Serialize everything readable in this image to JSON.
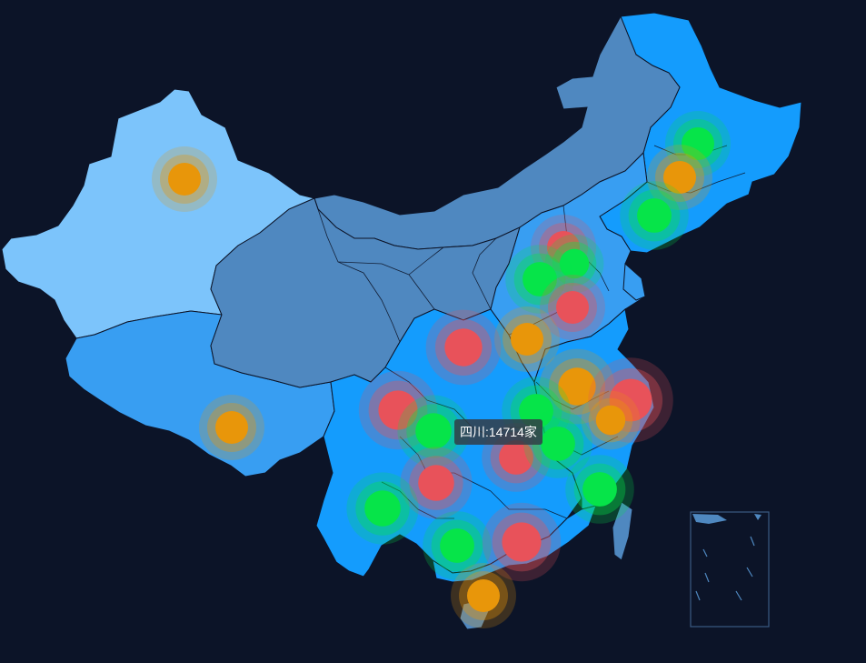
{
  "tooltip": {
    "text": "四川:14714家"
  },
  "colors": {
    "background": "#0c1428",
    "red": "#e8525a",
    "green": "#06e449",
    "orange": "#e8960a",
    "land_light": "#7cc4fb",
    "land_blue": "#149cfd",
    "land_mid": "#389ef2",
    "land_steel": "#4f88c0"
  },
  "markers": [
    {
      "province": "新疆",
      "color": "orange"
    },
    {
      "province": "西藏",
      "color": "orange"
    },
    {
      "province": "黑龙江",
      "color": "green"
    },
    {
      "province": "吉林",
      "color": "orange"
    },
    {
      "province": "辽宁",
      "color": "green"
    },
    {
      "province": "北京",
      "color": "red"
    },
    {
      "province": "天津",
      "color": "green"
    },
    {
      "province": "河北",
      "color": "green"
    },
    {
      "province": "山东",
      "color": "red"
    },
    {
      "province": "河南",
      "color": "orange"
    },
    {
      "province": "陕西",
      "color": "red"
    },
    {
      "province": "江苏",
      "color": "orange"
    },
    {
      "province": "上海",
      "color": "red"
    },
    {
      "province": "浙江",
      "color": "orange"
    },
    {
      "province": "安徽",
      "color": "green"
    },
    {
      "province": "四川",
      "color": "red"
    },
    {
      "province": "重庆",
      "color": "green"
    },
    {
      "province": "湖北",
      "color": "red"
    },
    {
      "province": "江西",
      "color": "green"
    },
    {
      "province": "福建",
      "color": "green"
    },
    {
      "province": "贵州",
      "color": "red"
    },
    {
      "province": "云南",
      "color": "green"
    },
    {
      "province": "广西",
      "color": "green"
    },
    {
      "province": "广东",
      "color": "red"
    },
    {
      "province": "海南",
      "color": "orange"
    }
  ]
}
